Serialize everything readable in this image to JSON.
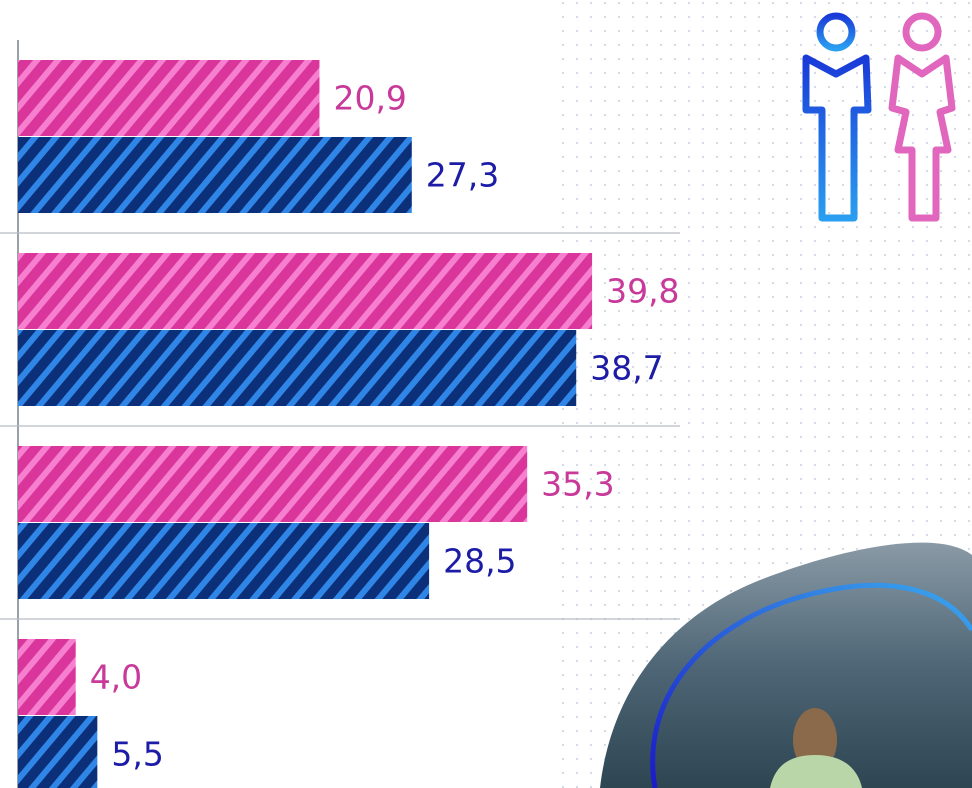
{
  "chart_data": {
    "type": "barh",
    "categories": [
      null,
      null,
      null,
      null
    ],
    "series": [
      {
        "color": "#d9359a",
        "stripe_color": "#f67fd0",
        "values": [
          20.9,
          39.8,
          35.3,
          4.0
        ],
        "value_labels": [
          "20,9",
          "39,8",
          "35,3",
          "4,0"
        ],
        "label_color": "#c8399a"
      },
      {
        "color": "#0b2f78",
        "stripe_color": "#2f86e6",
        "values": [
          27.3,
          38.7,
          28.5,
          5.5
        ],
        "value_labels": [
          "27,3",
          "38,7",
          "28,5",
          "5,5"
        ],
        "label_color": "#1c1ca6"
      }
    ],
    "xlim": [
      0,
      66
    ]
  }
}
